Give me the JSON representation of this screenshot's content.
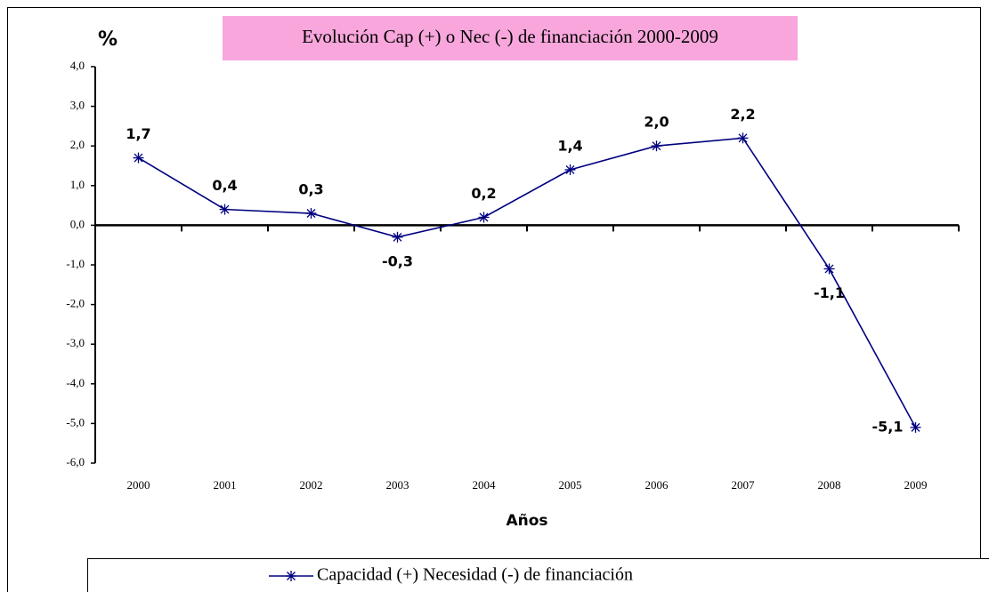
{
  "chart_data": {
    "type": "line",
    "title": "Evolución Cap (+) o Nec (-) de financiación 2000-2009",
    "y_label": "%",
    "x_label": "Años",
    "categories": [
      "2000",
      "2001",
      "2002",
      "2003",
      "2004",
      "2005",
      "2006",
      "2007",
      "2008",
      "2009"
    ],
    "series": [
      {
        "name": "Capacidad (+) Necesidad (-) de financiación",
        "color": "#000080",
        "values": [
          1.7,
          0.4,
          0.3,
          -0.3,
          0.2,
          1.4,
          2.0,
          2.2,
          -1.1,
          -5.1
        ],
        "value_labels": [
          "1,7",
          "0,4",
          "0,3",
          "-0,3",
          "0,2",
          "1,4",
          "2,0",
          "2,2",
          "-1,1",
          "-5,1"
        ]
      }
    ],
    "ylim": [
      -6,
      4
    ],
    "yticks": [
      {
        "value": 4,
        "label": "4,0"
      },
      {
        "value": 3,
        "label": "3,0"
      },
      {
        "value": 2,
        "label": "2,0"
      },
      {
        "value": 1,
        "label": "1,0"
      },
      {
        "value": 0,
        "label": "0,0"
      },
      {
        "value": -1,
        "label": "-1,0"
      },
      {
        "value": -2,
        "label": "-2,0"
      },
      {
        "value": -3,
        "label": "-3,0"
      },
      {
        "value": -4,
        "label": "-4,0"
      },
      {
        "value": -5,
        "label": "-5,0"
      },
      {
        "value": -6,
        "label": "-6,0"
      }
    ],
    "legend": "bottom"
  }
}
